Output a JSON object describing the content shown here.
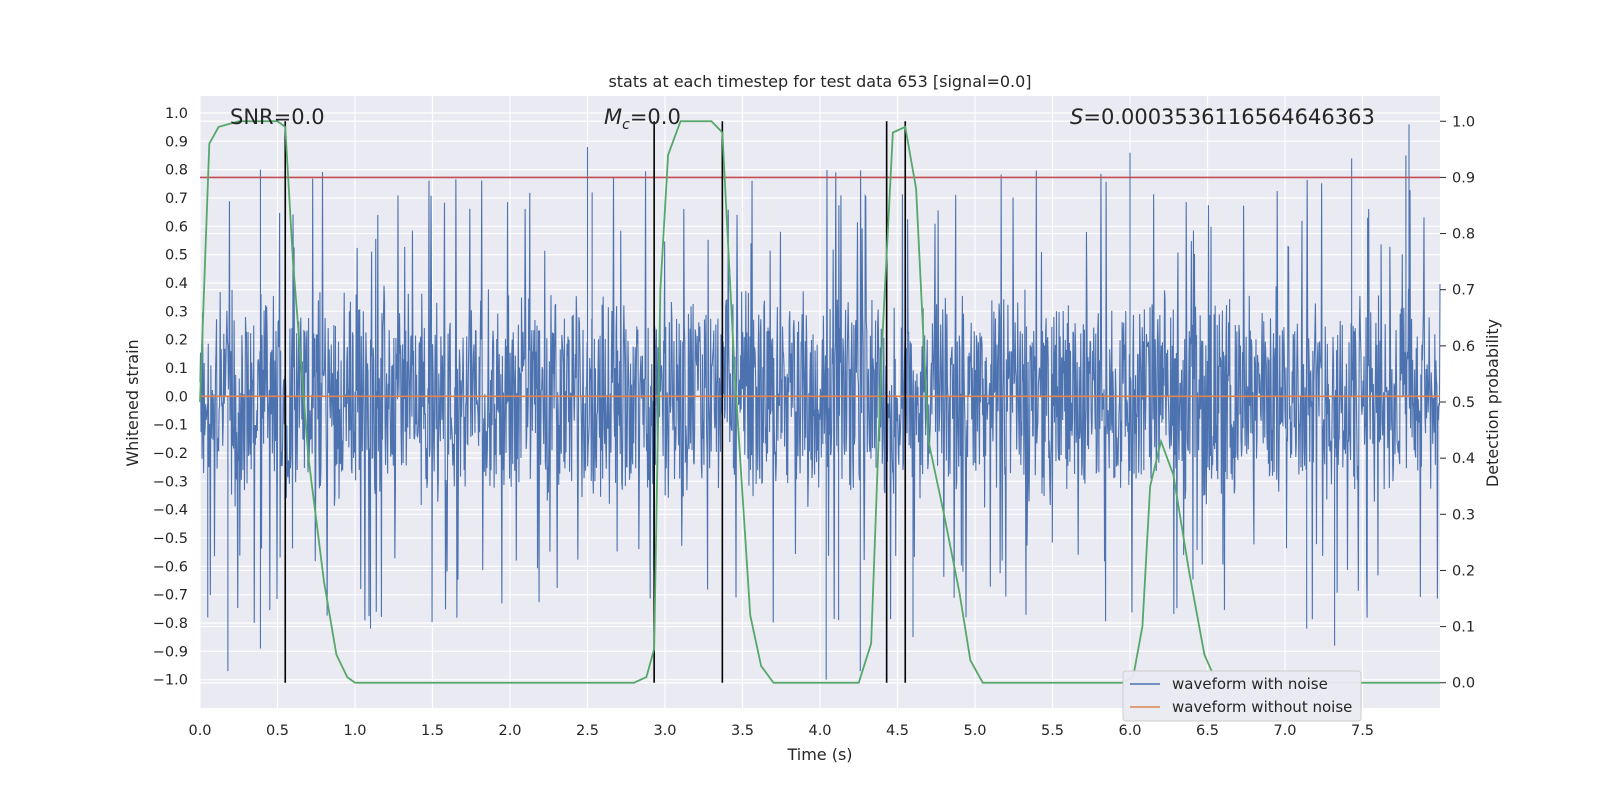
{
  "chart_data": {
    "type": "line",
    "title": "stats at each timestep for test data 653 [signal=0.0]",
    "xlabel": "Time (s)",
    "ylabel": "Whitened strain",
    "y2label": "Detection probability",
    "xlim": [
      0.0,
      8.0
    ],
    "ylim": [
      -1.1,
      1.06
    ],
    "y2lim": [
      -0.045,
      1.045
    ],
    "xticks": [
      "0.0",
      "0.5",
      "1.0",
      "1.5",
      "2.0",
      "2.5",
      "3.0",
      "3.5",
      "4.0",
      "4.5",
      "5.0",
      "5.5",
      "6.0",
      "6.5",
      "7.0",
      "7.5"
    ],
    "yticks": [
      "1.0",
      "0.9",
      "0.8",
      "0.7",
      "0.6",
      "0.5",
      "0.4",
      "0.3",
      "0.2",
      "0.1",
      "0.0",
      "−0.1",
      "−0.2",
      "−0.3",
      "−0.4",
      "−0.5",
      "−0.6",
      "−0.7",
      "−0.8",
      "−0.9",
      "−1.0"
    ],
    "y2ticks": [
      "1.0",
      "0.9",
      "0.8",
      "0.7",
      "0.6",
      "0.5",
      "0.4",
      "0.3",
      "0.2",
      "0.1",
      "0.0"
    ],
    "annotations": {
      "snr": "SNR=0.0",
      "mc_symbol": "M",
      "mc_sub": "c",
      "mc_value": "=0.0",
      "s_symbol": "S",
      "s_value": "=0.0003536116564646363"
    },
    "threshold": 0.9,
    "event_lines_x": [
      0.55,
      2.93,
      3.37,
      4.43,
      4.55
    ],
    "series": [
      {
        "name": "waveform with noise",
        "color": "#4c72b0",
        "kind": "noise",
        "band": 0.4,
        "spikes": [
          {
            "x": 0.18,
            "y": -0.97
          },
          {
            "x": 0.39,
            "y": 0.8
          },
          {
            "x": 0.39,
            "y": -0.89
          },
          {
            "x": 1.1,
            "y": -0.82
          },
          {
            "x": 2.5,
            "y": 0.88
          },
          {
            "x": 2.53,
            "y": 0.72
          },
          {
            "x": 4.04,
            "y": -1.0
          },
          {
            "x": 4.26,
            "y": -0.97
          },
          {
            "x": 4.12,
            "y": -0.79
          },
          {
            "x": 4.6,
            "y": -0.85
          },
          {
            "x": 6.0,
            "y": 0.86
          },
          {
            "x": 7.8,
            "y": 0.96
          },
          {
            "x": 7.43,
            "y": 0.84
          },
          {
            "x": 7.78,
            "y": 0.85
          },
          {
            "x": 7.32,
            "y": -0.88
          },
          {
            "x": 7.14,
            "y": -0.82
          },
          {
            "x": 0.05,
            "y": -0.78
          }
        ]
      },
      {
        "name": "waveform without noise",
        "color": "#dd8452",
        "values_constant": 0.0
      },
      {
        "name": "detection probability",
        "color": "#55a868",
        "axis": "right",
        "points": [
          [
            0.0,
            0.5
          ],
          [
            0.06,
            0.96
          ],
          [
            0.12,
            0.99
          ],
          [
            0.25,
            1.0
          ],
          [
            0.5,
            1.0
          ],
          [
            0.55,
            0.99
          ],
          [
            0.6,
            0.75
          ],
          [
            0.7,
            0.4
          ],
          [
            0.8,
            0.18
          ],
          [
            0.88,
            0.05
          ],
          [
            0.95,
            0.01
          ],
          [
            1.0,
            0.0
          ],
          [
            2.8,
            0.0
          ],
          [
            2.88,
            0.01
          ],
          [
            2.93,
            0.06
          ],
          [
            2.97,
            0.7
          ],
          [
            3.02,
            0.94
          ],
          [
            3.1,
            1.0
          ],
          [
            3.3,
            1.0
          ],
          [
            3.37,
            0.98
          ],
          [
            3.45,
            0.55
          ],
          [
            3.55,
            0.12
          ],
          [
            3.62,
            0.03
          ],
          [
            3.7,
            0.0
          ],
          [
            4.25,
            0.0
          ],
          [
            4.33,
            0.07
          ],
          [
            4.4,
            0.6
          ],
          [
            4.47,
            0.98
          ],
          [
            4.55,
            0.99
          ],
          [
            4.62,
            0.88
          ],
          [
            4.7,
            0.43
          ],
          [
            4.8,
            0.3
          ],
          [
            4.9,
            0.16
          ],
          [
            4.97,
            0.04
          ],
          [
            5.05,
            0.0
          ],
          [
            5.95,
            0.0
          ],
          [
            6.02,
            0.01
          ],
          [
            6.08,
            0.1
          ],
          [
            6.13,
            0.35
          ],
          [
            6.2,
            0.43
          ],
          [
            6.28,
            0.37
          ],
          [
            6.38,
            0.2
          ],
          [
            6.48,
            0.05
          ],
          [
            6.56,
            0.0
          ],
          [
            8.0,
            0.0
          ]
        ]
      },
      {
        "name": "threshold",
        "color": "#c44e52",
        "axis": "right"
      }
    ],
    "legend": {
      "placement": "lower-right",
      "entries": [
        "waveform with noise",
        "waveform without noise"
      ]
    },
    "colors": {
      "background": "#eaeaf2",
      "grid": "#ffffff",
      "event_line": "#000000"
    }
  }
}
